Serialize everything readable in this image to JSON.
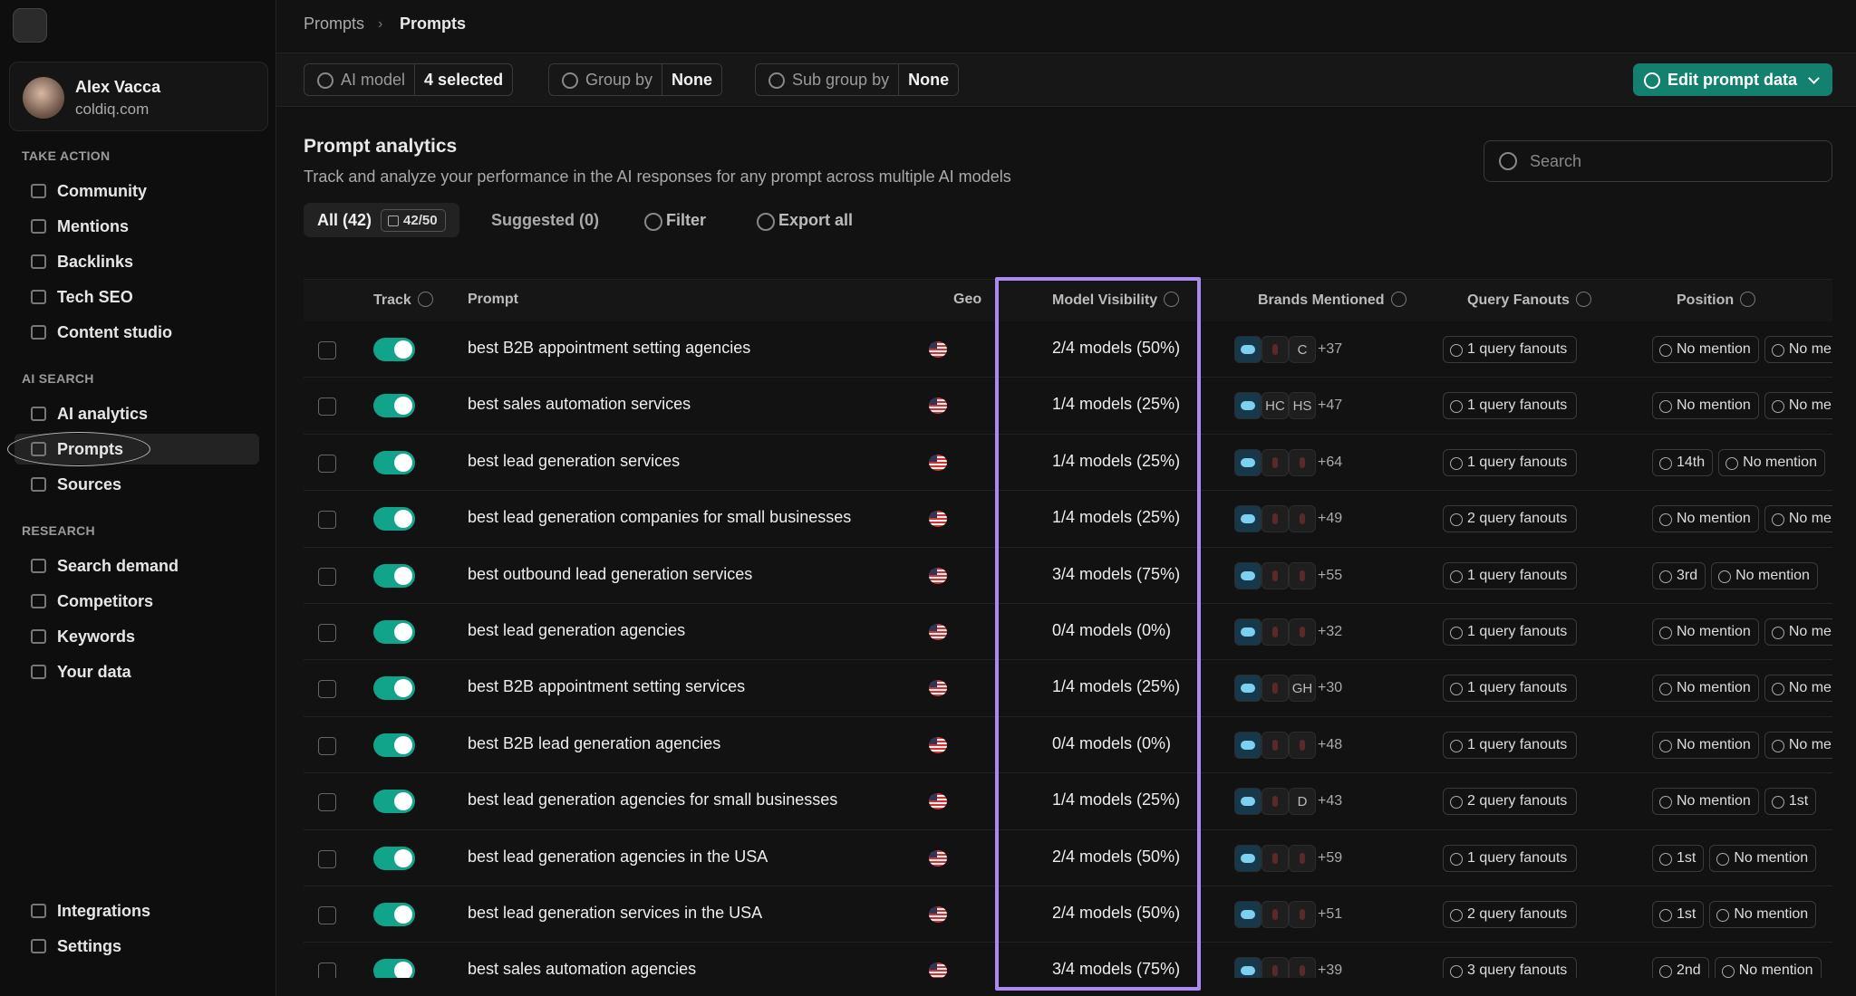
{
  "sidebar": {
    "user": {
      "name": "Alex Vacca",
      "org": "coldiq.com"
    },
    "sections": [
      {
        "title": "TAKE ACTION",
        "items": [
          "Community",
          "Mentions",
          "Backlinks",
          "Tech SEO",
          "Content studio"
        ]
      },
      {
        "title": "AI SEARCH",
        "items": [
          "AI analytics",
          "Prompts",
          "Sources"
        ]
      },
      {
        "title": "RESEARCH",
        "items": [
          "Search demand",
          "Competitors",
          "Keywords",
          "Your data"
        ]
      }
    ],
    "footer": [
      "Integrations",
      "Settings"
    ],
    "active": "Prompts"
  },
  "breadcrumb": [
    "Prompts",
    "Prompts"
  ],
  "toolbar": {
    "filters": [
      {
        "label": "AI model",
        "value": "4 selected"
      },
      {
        "label": "Group by",
        "value": "None"
      },
      {
        "label": "Sub group by",
        "value": "None"
      }
    ],
    "button": "Edit prompt data"
  },
  "header": {
    "title": "Prompt analytics",
    "subtitle": "Track and analyze your performance in the AI responses for any prompt across multiple AI models",
    "search": "Search"
  },
  "tabs": [
    {
      "label": "All (42)",
      "badge": "42/50"
    },
    {
      "label": "Suggested (0)"
    }
  ],
  "actions": [
    "Filter",
    "Export all"
  ],
  "table": {
    "columns": [
      "Track",
      "Prompt",
      "Geo",
      "Model Visibility",
      "Brands Mentioned",
      "Query Fanouts",
      "Position"
    ],
    "rows": [
      {
        "prompt": "best B2B appointment setting agencies",
        "visibility": "2/4 models (50%)",
        "brands": [
          null,
          null,
          "C"
        ],
        "more": "+37",
        "fanouts": "1 query fanouts",
        "position": [
          "No mention",
          "No mention"
        ]
      },
      {
        "prompt": "best sales automation services",
        "visibility": "1/4 models (25%)",
        "brands": [
          null,
          "HC",
          "HS"
        ],
        "more": "+47",
        "fanouts": "1 query fanouts",
        "position": [
          "No mention",
          "No mention"
        ]
      },
      {
        "prompt": "best lead generation services",
        "visibility": "1/4 models (25%)",
        "brands": [
          null,
          null,
          null
        ],
        "more": "+64",
        "fanouts": "1 query fanouts",
        "position": [
          "14th",
          "No mention"
        ]
      },
      {
        "prompt": "best lead generation companies for small businesses",
        "visibility": "1/4 models (25%)",
        "brands": [
          null,
          null,
          null
        ],
        "more": "+49",
        "fanouts": "2 query fanouts",
        "position": [
          "No mention",
          "No mention"
        ]
      },
      {
        "prompt": "best outbound lead generation services",
        "visibility": "3/4 models (75%)",
        "brands": [
          null,
          null,
          null
        ],
        "more": "+55",
        "fanouts": "1 query fanouts",
        "position": [
          "3rd",
          "No mention"
        ]
      },
      {
        "prompt": "best lead generation agencies",
        "visibility": "0/4 models (0%)",
        "brands": [
          null,
          null,
          null
        ],
        "more": "+32",
        "fanouts": "1 query fanouts",
        "position": [
          "No mention",
          "No mention"
        ]
      },
      {
        "prompt": "best B2B appointment setting services",
        "visibility": "1/4 models (25%)",
        "brands": [
          null,
          null,
          "GH"
        ],
        "more": "+30",
        "fanouts": "1 query fanouts",
        "position": [
          "No mention",
          "No mention"
        ]
      },
      {
        "prompt": "best B2B lead generation agencies",
        "visibility": "0/4 models (0%)",
        "brands": [
          null,
          null,
          null
        ],
        "more": "+48",
        "fanouts": "1 query fanouts",
        "position": [
          "No mention",
          "No mention"
        ]
      },
      {
        "prompt": "best lead generation agencies for small businesses",
        "visibility": "1/4 models (25%)",
        "brands": [
          null,
          null,
          "D"
        ],
        "more": "+43",
        "fanouts": "2 query fanouts",
        "position": [
          "No mention",
          "1st"
        ]
      },
      {
        "prompt": "best lead generation agencies in the USA",
        "visibility": "2/4 models (50%)",
        "brands": [
          null,
          null,
          null
        ],
        "more": "+59",
        "fanouts": "1 query fanouts",
        "position": [
          "1st",
          "No mention"
        ]
      },
      {
        "prompt": "best lead generation services in the USA",
        "visibility": "2/4 models (50%)",
        "brands": [
          null,
          null,
          null
        ],
        "more": "+51",
        "fanouts": "2 query fanouts",
        "position": [
          "1st",
          "No mention"
        ]
      },
      {
        "prompt": "best sales automation agencies",
        "visibility": "3/4 models (75%)",
        "brands": [
          null,
          null,
          null
        ],
        "more": "+39",
        "fanouts": "3 query fanouts",
        "position": [
          "2nd",
          "No mention"
        ]
      }
    ]
  }
}
